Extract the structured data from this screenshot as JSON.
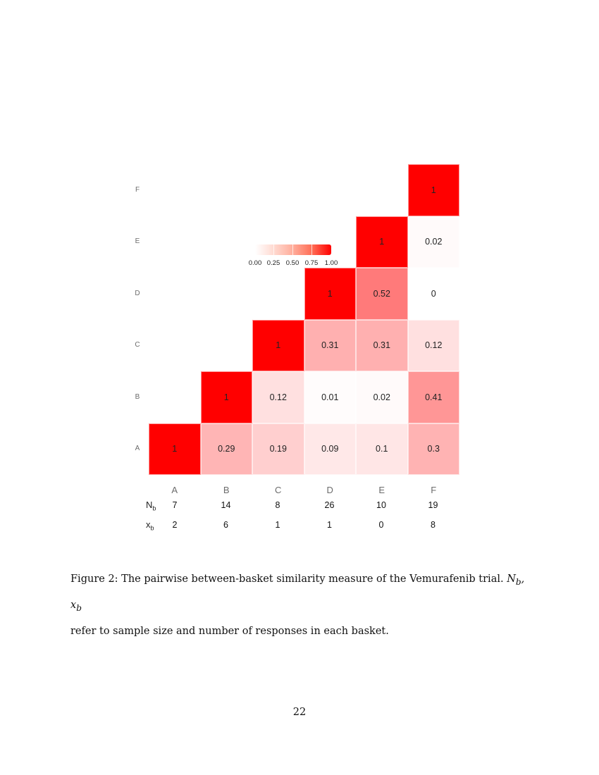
{
  "figure": {
    "caption_prefix": "Figure 2:",
    "caption_text": "The pairwise between-basket similarity measure of the Vemurafenib trial.",
    "caption_math": "N_b, x_b",
    "caption_tail": "refer to sample size and number of responses in each basket.",
    "page_number": "22"
  },
  "colors": {
    "low": "#ffffff",
    "high": "#ff0000",
    "text": "#222222",
    "axis_text": "#6b6b6b"
  },
  "legend": {
    "labels": [
      "0.00",
      "0.25",
      "0.50",
      "0.75",
      "1.00"
    ]
  },
  "axes": {
    "x_labels": [
      "A",
      "B",
      "C",
      "D",
      "E",
      "F"
    ],
    "y_labels": [
      "A",
      "B",
      "C",
      "D",
      "E",
      "F"
    ]
  },
  "table": {
    "nb_label": "N",
    "nb_sub": "b",
    "xb_label": "x",
    "xb_sub": "b",
    "nb": [
      "7",
      "14",
      "8",
      "26",
      "10",
      "19"
    ],
    "xb": [
      "2",
      "6",
      "1",
      "1",
      "0",
      "8"
    ]
  },
  "chart_data": {
    "type": "heatmap",
    "title": "",
    "xlabel": "",
    "ylabel": "",
    "x_categories": [
      "A",
      "B",
      "C",
      "D",
      "E",
      "F"
    ],
    "y_categories": [
      "A",
      "B",
      "C",
      "D",
      "E",
      "F"
    ],
    "color_scale": {
      "min": 0,
      "max": 1,
      "low": "#ffffff",
      "high": "#ff0000",
      "ticks": [
        0.0,
        0.25,
        0.5,
        0.75,
        1.0
      ]
    },
    "cells": [
      {
        "x": "A",
        "y": "A",
        "value": 1,
        "label": "1"
      },
      {
        "x": "B",
        "y": "A",
        "value": 0.29,
        "label": "0.29"
      },
      {
        "x": "C",
        "y": "A",
        "value": 0.19,
        "label": "0.19"
      },
      {
        "x": "D",
        "y": "A",
        "value": 0.09,
        "label": "0.09"
      },
      {
        "x": "E",
        "y": "A",
        "value": 0.1,
        "label": "0.1"
      },
      {
        "x": "F",
        "y": "A",
        "value": 0.3,
        "label": "0.3"
      },
      {
        "x": "B",
        "y": "B",
        "value": 1,
        "label": "1"
      },
      {
        "x": "C",
        "y": "B",
        "value": 0.12,
        "label": "0.12"
      },
      {
        "x": "D",
        "y": "B",
        "value": 0.01,
        "label": "0.01"
      },
      {
        "x": "E",
        "y": "B",
        "value": 0.02,
        "label": "0.02"
      },
      {
        "x": "F",
        "y": "B",
        "value": 0.41,
        "label": "0.41"
      },
      {
        "x": "C",
        "y": "C",
        "value": 1,
        "label": "1"
      },
      {
        "x": "D",
        "y": "C",
        "value": 0.31,
        "label": "0.31"
      },
      {
        "x": "E",
        "y": "C",
        "value": 0.31,
        "label": "0.31"
      },
      {
        "x": "F",
        "y": "C",
        "value": 0.12,
        "label": "0.12"
      },
      {
        "x": "D",
        "y": "D",
        "value": 1,
        "label": "1"
      },
      {
        "x": "E",
        "y": "D",
        "value": 0.52,
        "label": "0.52"
      },
      {
        "x": "F",
        "y": "D",
        "value": 0,
        "label": "0"
      },
      {
        "x": "E",
        "y": "E",
        "value": 1,
        "label": "1"
      },
      {
        "x": "F",
        "y": "E",
        "value": 0.02,
        "label": "0.02"
      },
      {
        "x": "F",
        "y": "F",
        "value": 1,
        "label": "1"
      }
    ],
    "annotations": {
      "N_b": {
        "A": 7,
        "B": 14,
        "C": 8,
        "D": 26,
        "E": 10,
        "F": 19
      },
      "x_b": {
        "A": 2,
        "B": 6,
        "C": 1,
        "D": 1,
        "E": 0,
        "F": 8
      }
    },
    "legend_position": "inside, upper-left of triangle (near row E)"
  }
}
